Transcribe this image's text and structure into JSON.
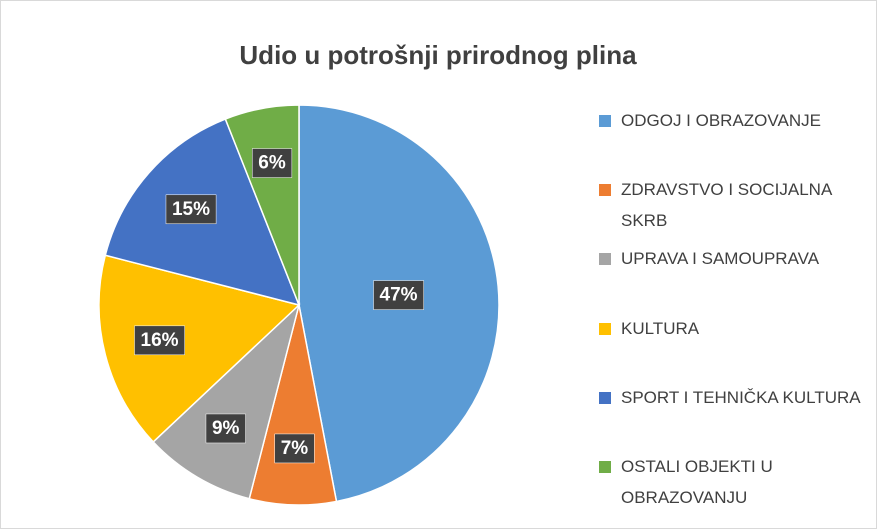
{
  "chart_data": {
    "type": "pie",
    "title": "Udio u potrošnji prirodnog plina",
    "categories": [
      "ODGOJ I OBRAZOVANJE",
      "ZDRAVSTVO I SOCIJALNA SKRB",
      "UPRAVA I SAMOUPRAVA",
      "KULTURA",
      "SPORT I TEHNIČKA KULTURA",
      "OSTALI OBJEKTI U OBRAZOVANJU"
    ],
    "values": [
      47,
      7,
      9,
      16,
      15,
      6
    ],
    "value_labels": [
      "47%",
      "7%",
      "9%",
      "16%",
      "15%",
      "6%"
    ],
    "colors": [
      "#5b9bd5",
      "#ed7d31",
      "#a5a5a5",
      "#ffc000",
      "#4472c4",
      "#70ad47"
    ],
    "legend": "right"
  }
}
